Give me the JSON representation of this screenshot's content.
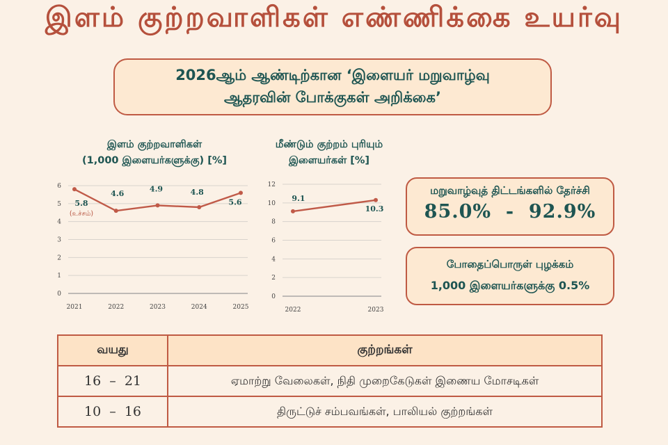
{
  "page": {
    "title": "இளம் குற்றவாளிகள் எண்ணிக்கை உயர்வு",
    "report_line1": "2026ஆம் ஆண்டிற்கான ‘இளையர் மறுவாழ்வு",
    "report_line2": "ஆதரவின் போக்குகள் அறிக்கை’"
  },
  "chart_data": [
    {
      "type": "line",
      "title_line1": "இளம் குற்றவாளிகள்",
      "title_line2": "(1,000 இளையர்களுக்கு) [%]",
      "x": [
        "2021",
        "2022",
        "2023",
        "2024",
        "2025"
      ],
      "y": [
        5.8,
        4.6,
        4.9,
        4.8,
        5.6
      ],
      "data_labels": [
        "5.8",
        "4.6",
        "4.9",
        "4.8",
        "5.6"
      ],
      "annotation": "(உச்சம்)",
      "ylim": [
        0,
        6
      ],
      "yticks": [
        "0",
        "1",
        "2",
        "3",
        "4",
        "5",
        "6"
      ],
      "grid": true,
      "line_color": "#c05a48"
    },
    {
      "type": "line",
      "title_line1": "மீண்டும் குற்றம் புரியும்",
      "title_line2": "இளையர்கள் [%]",
      "x": [
        "2022",
        "2023"
      ],
      "y": [
        9.1,
        10.3
      ],
      "data_labels": [
        "9.1",
        "10.3"
      ],
      "ylim": [
        0,
        12
      ],
      "yticks": [
        "0",
        "2",
        "4",
        "6",
        "8",
        "10",
        "12"
      ],
      "grid": true,
      "line_color": "#c05a48"
    }
  ],
  "stats": {
    "rehab_label": "மறுவாழ்வுத் திட்டங்களில் தேர்ச்சி",
    "rehab_value": "85.0%  -  92.9%",
    "drug_label": "போதைப்பொருள் புழக்கம்",
    "drug_value": "1,000 இளையர்களுக்கு 0.5%"
  },
  "table": {
    "headers": [
      "வயது",
      "குற்றங்கள்"
    ],
    "rows": [
      {
        "age": "16  –  21",
        "crimes": "ஏமாற்று வேலைகள், நிதி முறைகேடுகள் இணைய மோசடிகள்"
      },
      {
        "age": "10  –  16",
        "crimes": "திருட்டுச் சம்பவங்கள், பாலியல் குற்றங்கள்"
      }
    ]
  },
  "colors": {
    "accent": "#b5503c",
    "border": "#bf5a43",
    "teal": "#1e5552",
    "box_fill": "#fde9d2",
    "background": "#fbf1e6"
  }
}
